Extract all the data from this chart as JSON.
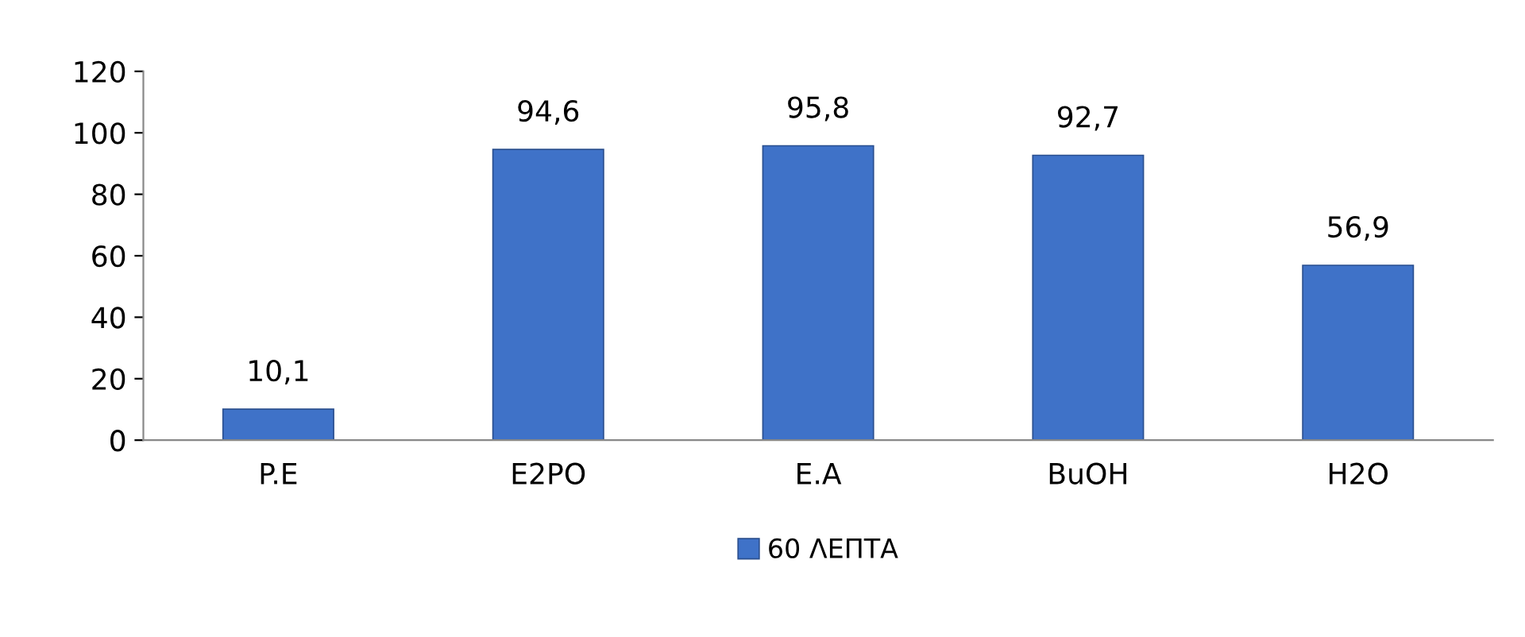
{
  "chart_data": {
    "type": "bar",
    "categories": [
      "P.E",
      "E2PO",
      "E.A",
      "BuOH",
      "H2O"
    ],
    "series": [
      {
        "name": "60 ΛΕΠΤΑ",
        "color": "#3f72c8",
        "values": [
          10.1,
          94.6,
          95.8,
          92.7,
          56.9
        ],
        "value_labels": [
          "10,1",
          "94,6",
          "95,8",
          "92,7",
          "56,9"
        ]
      }
    ],
    "ylim": [
      0,
      120
    ],
    "yticks": [
      0,
      20,
      40,
      60,
      80,
      100,
      120
    ],
    "grid": false,
    "legend": "bottom"
  }
}
